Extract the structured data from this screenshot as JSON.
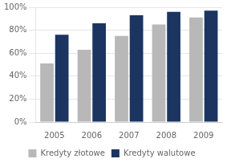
{
  "chart_data": {
    "type": "bar",
    "categories": [
      "2005",
      "2006",
      "2007",
      "2008",
      "2009"
    ],
    "series": [
      {
        "name": "Kredyty złotowe",
        "color": "#b8b8b8",
        "values": [
          51,
          63,
          75,
          85,
          91
        ]
      },
      {
        "name": "Kredyty walutowe",
        "color": "#1b3560",
        "values": [
          76,
          86,
          93,
          96,
          97
        ]
      }
    ],
    "ylim": [
      0,
      100
    ],
    "yticks": [
      {
        "value": 0,
        "label": "0%"
      },
      {
        "value": 20,
        "label": "20%"
      },
      {
        "value": 40,
        "label": "40%"
      },
      {
        "value": 60,
        "label": "60%"
      },
      {
        "value": 80,
        "label": "80%"
      },
      {
        "value": 100,
        "label": "100%"
      }
    ],
    "grid": true,
    "legend": "bottom"
  }
}
